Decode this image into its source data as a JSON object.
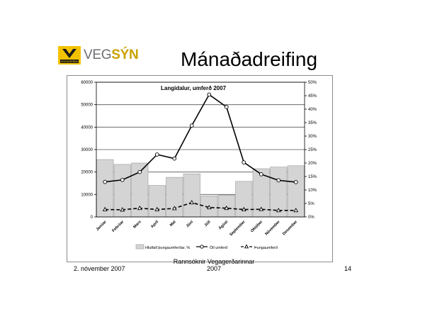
{
  "slide": {
    "logo_text_a": "VEG",
    "logo_text_b": "SÝN",
    "logo_small_text": "VEGAGERÐIN",
    "title": "Mánaðadreifing",
    "footer_date": "2. nóvember 2007",
    "footer_source_line1": "Rannsóknir Vegagerðarinnar",
    "footer_source_line2": "2007",
    "page_number": "14"
  },
  "chart_data": {
    "type": "bar",
    "title": "Langidalur, umferð 2007",
    "categories": [
      "Janúar",
      "Febrúar",
      "Mars",
      "Apríl",
      "Maí",
      "Júní",
      "Júlí",
      "Ágúst",
      "September",
      "Október",
      "Nóvember",
      "Desember"
    ],
    "left_axis": {
      "ylim": [
        0,
        60000
      ],
      "ticks": [
        "0",
        "10000",
        "20000",
        "30000",
        "40000",
        "50000",
        "60000"
      ]
    },
    "right_axis": {
      "ylim": [
        0,
        50
      ],
      "ticks": [
        "0%",
        "5%",
        "10%",
        "15%",
        "20%",
        "25%",
        "30%",
        "35%",
        "40%",
        "45%",
        "50%"
      ]
    },
    "grid": true,
    "legend_position": "bottom",
    "series": [
      {
        "name": "Hlutfall þungaumferðar, %",
        "kind": "bar",
        "axis": "right",
        "color": "#d4d4d4",
        "values": [
          21.3,
          19.5,
          20.0,
          11.7,
          14.7,
          16.0,
          7.8,
          8.1,
          13.2,
          17.9,
          18.5,
          19.0
        ]
      },
      {
        "name": "Öll umferð",
        "kind": "line",
        "axis": "left",
        "marker": "circle",
        "dash": false,
        "color": "#000000",
        "values": [
          15600,
          16500,
          20000,
          27800,
          26000,
          40700,
          54500,
          49000,
          24300,
          19000,
          16300,
          15500
        ]
      },
      {
        "name": "Þungaumferð",
        "kind": "line",
        "axis": "left",
        "marker": "triangle",
        "dash": true,
        "color": "#000000",
        "values": [
          3300,
          3200,
          3900,
          3300,
          3800,
          6400,
          4200,
          3900,
          3300,
          3400,
          2900,
          2900
        ]
      }
    ]
  }
}
